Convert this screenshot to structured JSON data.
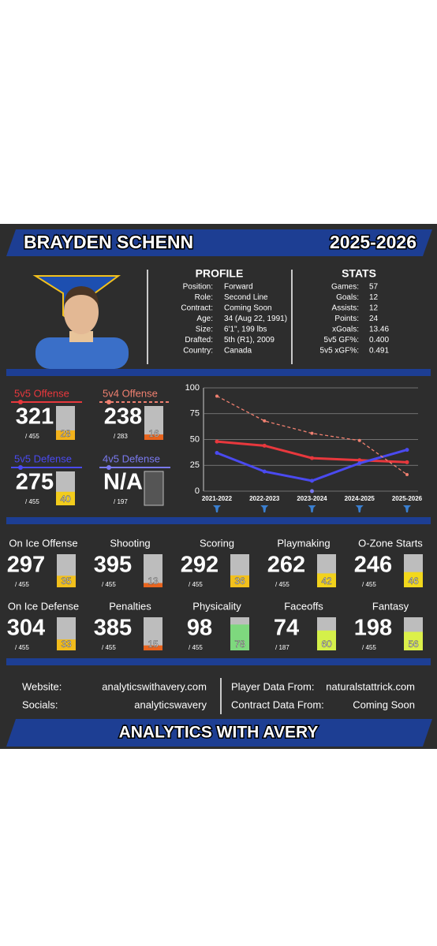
{
  "header": {
    "name": "BRAYDEN SCHENN",
    "season": "2025-2026"
  },
  "profile": {
    "title": "PROFILE",
    "rows": [
      [
        "Position:",
        "Forward"
      ],
      [
        "Role:",
        "Second Line"
      ],
      [
        "Contract:",
        "Coming Soon"
      ],
      [
        "Age:",
        "34 (Aug 22, 1991)"
      ],
      [
        "Size:",
        "6'1\", 199 lbs"
      ],
      [
        "Drafted:",
        "5th (R1), 2009"
      ],
      [
        "Country:",
        "Canada"
      ]
    ]
  },
  "stats": {
    "title": "STATS",
    "rows": [
      [
        "Games:",
        "57"
      ],
      [
        "Goals:",
        "12"
      ],
      [
        "Assists:",
        "12"
      ],
      [
        "Points:",
        "24"
      ],
      [
        "xGoals:",
        "13.46"
      ],
      [
        "5v5 GF%:",
        "0.400"
      ],
      [
        "5v5 xGF%:",
        "0.491"
      ]
    ]
  },
  "situational": [
    {
      "label": "5v5 Offense",
      "rank": 321,
      "total": "/ 455",
      "percentile": 28,
      "color": "#e8383d",
      "bar_color": "#f2b21c"
    },
    {
      "label": "5v4 Offense",
      "rank": 238,
      "total": "/ 283",
      "percentile": 16,
      "color": "#f08070",
      "bar_color": "#e8641e",
      "dashed": true
    },
    {
      "label": "5v5 Defense",
      "rank": 275,
      "total": "/ 455",
      "percentile": 40,
      "color": "#4a4af0",
      "bar_color": "#f2cc1c"
    },
    {
      "label": "4v5 Defense",
      "rank": "N/A",
      "total": "/ 197",
      "color": "#7a7af0"
    }
  ],
  "chart_data": {
    "type": "line",
    "categories": [
      "2021-2022",
      "2022-2023",
      "2023-2024",
      "2024-2025",
      "2025-2026"
    ],
    "series": [
      {
        "color": "#e8383d",
        "values": [
          48,
          44,
          32,
          30,
          28
        ]
      },
      {
        "color": "#4a4af0",
        "values": [
          37,
          19,
          10,
          27,
          40
        ]
      },
      {
        "color": "#f08070",
        "dashed": true,
        "values": [
          92,
          68,
          56,
          49,
          16
        ]
      },
      {
        "color": "#7a7af0",
        "values": [
          null,
          null,
          0,
          null,
          null
        ]
      }
    ],
    "ylim": [
      0,
      100
    ],
    "yticks": [
      0,
      25,
      50,
      75,
      100
    ],
    "grid": true
  },
  "metrics": [
    {
      "label": "On Ice Offense",
      "rank": 297,
      "total": "/ 455",
      "percentile": 35,
      "color": "#f2c01c"
    },
    {
      "label": "Shooting",
      "rank": 395,
      "total": "/ 455",
      "percentile": 13,
      "color": "#e8641e"
    },
    {
      "label": "Scoring",
      "rank": 292,
      "total": "/ 455",
      "percentile": 36,
      "color": "#f2c01c"
    },
    {
      "label": "Playmaking",
      "rank": 262,
      "total": "/ 455",
      "percentile": 42,
      "color": "#f2d21c"
    },
    {
      "label": "O-Zone Starts",
      "rank": 246,
      "total": "/ 455",
      "percentile": 46,
      "color": "#f2d81c"
    },
    {
      "label": "On Ice Defense",
      "rank": 304,
      "total": "/ 455",
      "percentile": 33,
      "color": "#f2bc1c"
    },
    {
      "label": "Penalties",
      "rank": 385,
      "total": "/ 455",
      "percentile": 15,
      "color": "#e8641e"
    },
    {
      "label": "Physicality",
      "rank": 98,
      "total": "/ 455",
      "percentile": 78,
      "color": "#7ed87e"
    },
    {
      "label": "Faceoffs",
      "rank": 74,
      "total": "/ 187",
      "percentile": 60,
      "color": "#d4f04a"
    },
    {
      "label": "Fantasy",
      "rank": 198,
      "total": "/ 455",
      "percentile": 56,
      "color": "#dcf04a"
    }
  ],
  "footer": {
    "rows": [
      [
        "Website:",
        "analyticswithavery.com",
        "Player Data From:",
        "naturalstattrick.com"
      ],
      [
        "Socials:",
        "analyticswavery",
        "Contract Data From:",
        "Coming Soon"
      ]
    ],
    "brand": "ANALYTICS WITH AVERY"
  }
}
